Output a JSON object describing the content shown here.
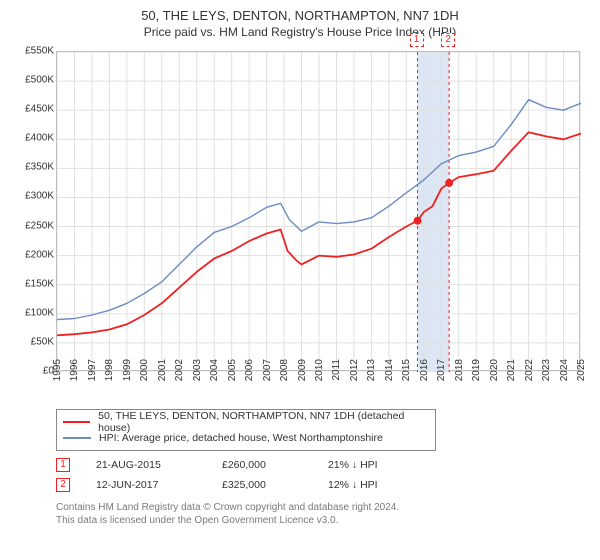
{
  "title_line1": "50, THE LEYS, DENTON, NORTHAMPTON, NN7 1DH",
  "title_line2": "Price paid vs. HM Land Registry's House Price Index (HPI)",
  "chart": {
    "type": "line",
    "background_color": "#ffffff",
    "grid_color": "#e0e0e0",
    "border_color": "#bfbfbf",
    "y": {
      "min": 0,
      "max": 550000,
      "tick_step": 50000,
      "tick_labels": [
        "£0",
        "£50K",
        "£100K",
        "£150K",
        "£200K",
        "£250K",
        "£300K",
        "£350K",
        "£400K",
        "£450K",
        "£500K",
        "£550K"
      ]
    },
    "x": {
      "min": 1995,
      "max": 2025,
      "tick_step": 1,
      "tick_labels": [
        "1995",
        "1996",
        "1997",
        "1998",
        "1999",
        "2000",
        "2001",
        "2002",
        "2003",
        "2004",
        "2005",
        "2006",
        "2007",
        "2008",
        "2009",
        "2010",
        "2011",
        "2012",
        "2013",
        "2014",
        "2015",
        "2016",
        "2017",
        "2018",
        "2019",
        "2020",
        "2021",
        "2022",
        "2023",
        "2024",
        "2025"
      ]
    },
    "shaded_region": {
      "x_start": 2015.64,
      "x_end": 2017.45,
      "color": "#dde6f3"
    },
    "dash_lines": [
      {
        "x": 2015.64,
        "color": "#ee2222"
      },
      {
        "x": 2017.45,
        "color": "#ee2222"
      }
    ],
    "series": [
      {
        "name": "property",
        "color": "#ee2222",
        "width": 1.8,
        "points": [
          [
            1995,
            63000
          ],
          [
            1996,
            65000
          ],
          [
            1997,
            68000
          ],
          [
            1998,
            73000
          ],
          [
            1999,
            82000
          ],
          [
            2000,
            98000
          ],
          [
            2001,
            118000
          ],
          [
            2002,
            145000
          ],
          [
            2003,
            172000
          ],
          [
            2004,
            195000
          ],
          [
            2005,
            208000
          ],
          [
            2006,
            225000
          ],
          [
            2007,
            238000
          ],
          [
            2007.8,
            245000
          ],
          [
            2008.2,
            208000
          ],
          [
            2008.7,
            192000
          ],
          [
            2009,
            185000
          ],
          [
            2010,
            200000
          ],
          [
            2011,
            198000
          ],
          [
            2012,
            202000
          ],
          [
            2013,
            212000
          ],
          [
            2014,
            232000
          ],
          [
            2015,
            250000
          ],
          [
            2015.64,
            260000
          ],
          [
            2016,
            275000
          ],
          [
            2016.5,
            285000
          ],
          [
            2017,
            315000
          ],
          [
            2017.45,
            325000
          ],
          [
            2018,
            335000
          ],
          [
            2019,
            340000
          ],
          [
            2020,
            346000
          ],
          [
            2021,
            380000
          ],
          [
            2022,
            412000
          ],
          [
            2023,
            405000
          ],
          [
            2024,
            400000
          ],
          [
            2025,
            410000
          ]
        ],
        "markers": [
          {
            "x": 2015.64,
            "y": 260000
          },
          {
            "x": 2017.45,
            "y": 325000
          }
        ]
      },
      {
        "name": "hpi",
        "color": "#6b8cc4",
        "width": 1.4,
        "points": [
          [
            1995,
            90000
          ],
          [
            1996,
            92000
          ],
          [
            1997,
            98000
          ],
          [
            1998,
            106000
          ],
          [
            1999,
            118000
          ],
          [
            2000,
            135000
          ],
          [
            2001,
            155000
          ],
          [
            2002,
            185000
          ],
          [
            2003,
            215000
          ],
          [
            2004,
            240000
          ],
          [
            2005,
            250000
          ],
          [
            2006,
            265000
          ],
          [
            2007,
            283000
          ],
          [
            2007.8,
            290000
          ],
          [
            2008.3,
            262000
          ],
          [
            2009,
            242000
          ],
          [
            2010,
            258000
          ],
          [
            2011,
            255000
          ],
          [
            2012,
            258000
          ],
          [
            2013,
            265000
          ],
          [
            2014,
            285000
          ],
          [
            2015,
            308000
          ],
          [
            2016,
            330000
          ],
          [
            2017,
            358000
          ],
          [
            2018,
            372000
          ],
          [
            2019,
            378000
          ],
          [
            2020,
            388000
          ],
          [
            2021,
            425000
          ],
          [
            2022,
            468000
          ],
          [
            2023,
            455000
          ],
          [
            2024,
            450000
          ],
          [
            2025,
            462000
          ]
        ]
      }
    ],
    "top_markers": [
      {
        "x": 2015.64,
        "label": "1",
        "border_color": "#ee2222"
      },
      {
        "x": 2017.45,
        "label": "2",
        "border_color": "#ee2222"
      }
    ]
  },
  "legend": {
    "row1": {
      "color": "#ee2222",
      "label": "50, THE LEYS, DENTON, NORTHAMPTON, NN7 1DH (detached house)"
    },
    "row2": {
      "color": "#6b8cc4",
      "label": "HPI: Average price, detached house, West Northamptonshire"
    }
  },
  "transactions": [
    {
      "num": "1",
      "date": "21-AUG-2015",
      "amount": "£260,000",
      "delta": "21% ↓ HPI"
    },
    {
      "num": "2",
      "date": "12-JUN-2017",
      "amount": "£325,000",
      "delta": "12% ↓ HPI"
    }
  ],
  "footer_line1": "Contains HM Land Registry data © Crown copyright and database right 2024.",
  "footer_line2": "This data is licensed under the Open Government Licence v3.0."
}
